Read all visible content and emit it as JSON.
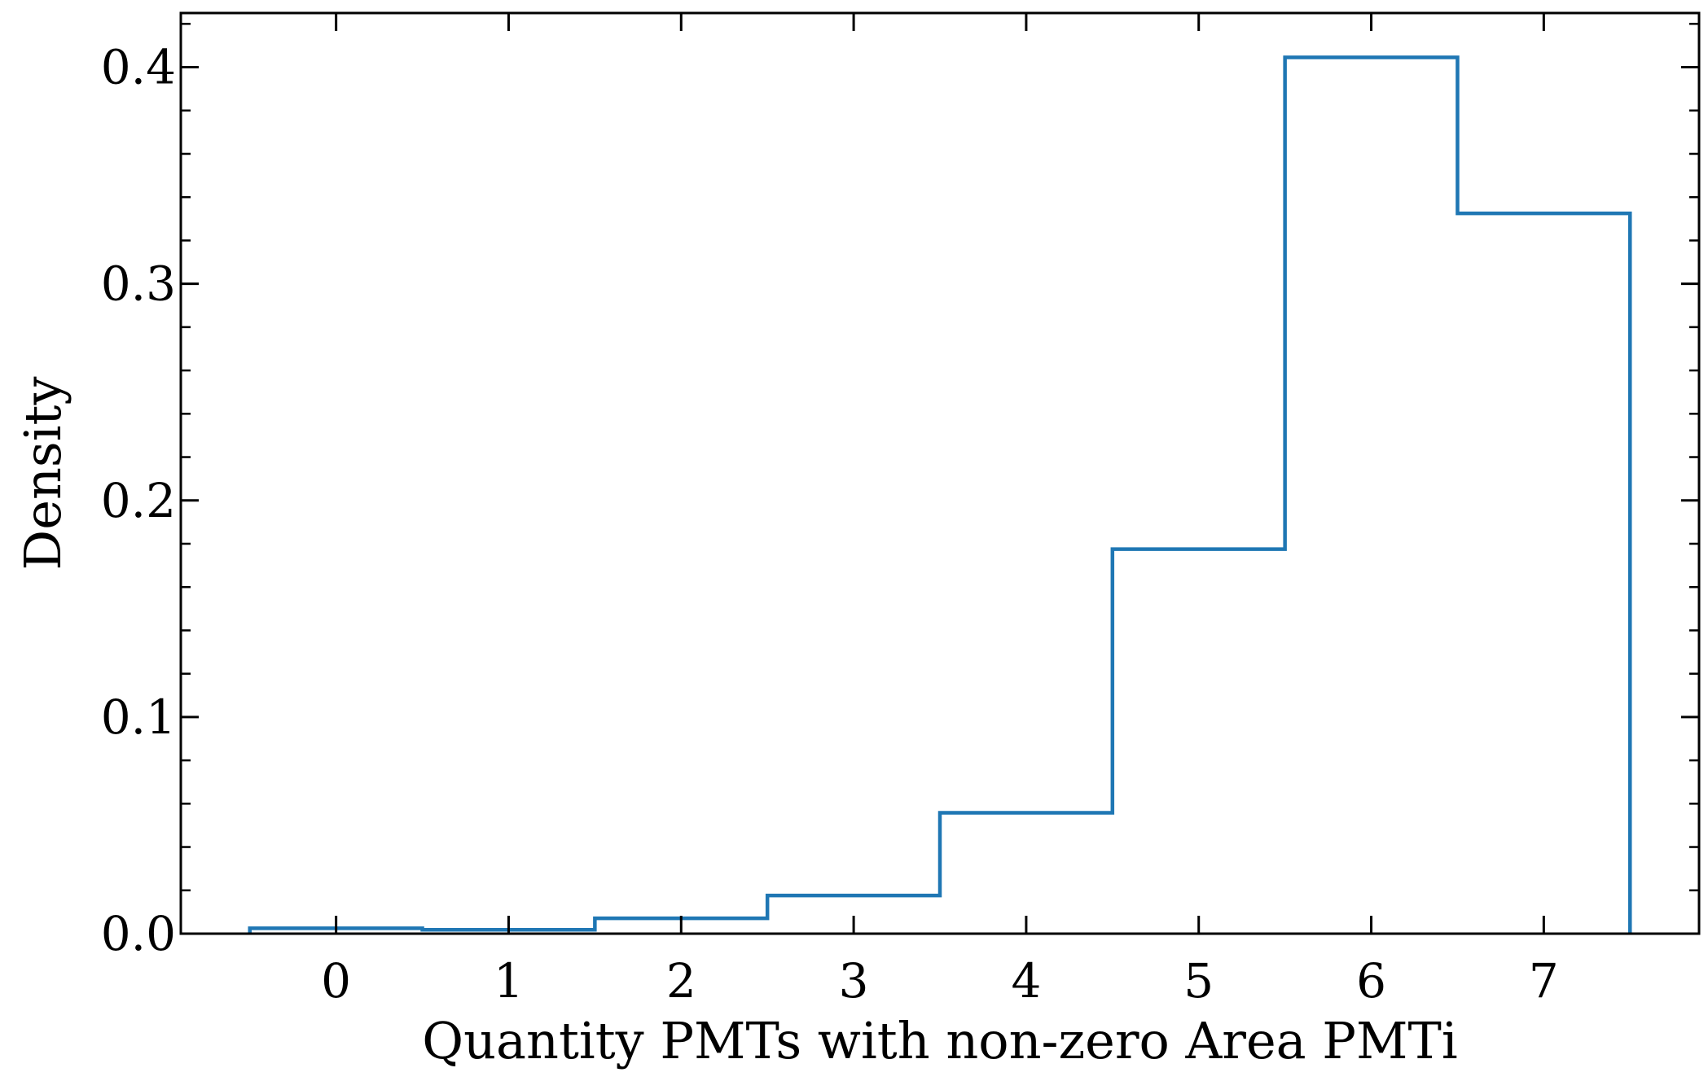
{
  "chart_data": {
    "type": "histogram",
    "title": "",
    "xlabel": "Quantity PMTs with non-zero Area PMTi",
    "ylabel": "Density",
    "xlim": [
      -0.9,
      7.9
    ],
    "ylim": [
      0.0,
      0.425
    ],
    "x_ticks": [
      0,
      1,
      2,
      3,
      4,
      5,
      6,
      7
    ],
    "x_tick_labels": [
      "0",
      "1",
      "2",
      "3",
      "4",
      "5",
      "6",
      "7"
    ],
    "y_ticks": [
      0.0,
      0.1,
      0.2,
      0.3,
      0.4
    ],
    "y_tick_labels": [
      "0.0",
      "0.1",
      "0.2",
      "0.3",
      "0.4"
    ],
    "y_minor_step": 0.02,
    "bin_edges": [
      -0.5,
      0.5,
      1.5,
      2.5,
      3.5,
      4.5,
      5.5,
      6.5,
      7.5
    ],
    "values": [
      0.0025,
      0.0018,
      0.0071,
      0.0176,
      0.0558,
      0.1775,
      0.4045,
      0.3325
    ],
    "histtype": "step",
    "line_color": "#1f77b4",
    "grid": false,
    "tick_direction": "in"
  }
}
